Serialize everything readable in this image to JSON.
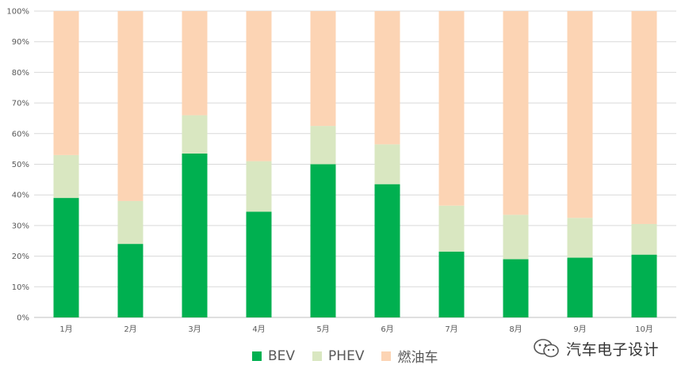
{
  "chart_data": {
    "type": "bar",
    "stacked": true,
    "percent": true,
    "categories": [
      "1月",
      "2月",
      "3月",
      "4月",
      "5月",
      "6月",
      "7月",
      "8月",
      "9月",
      "10月"
    ],
    "series": [
      {
        "name": "BEV",
        "color": "#00b050",
        "values": [
          39,
          24,
          53.5,
          34.5,
          50,
          43.5,
          21.5,
          19,
          19.5,
          20.5
        ]
      },
      {
        "name": "PHEV",
        "color": "#d9e7c1",
        "values": [
          14,
          14,
          12.5,
          16.5,
          12.5,
          13,
          15,
          14.5,
          13,
          10
        ]
      },
      {
        "name": "燃油车",
        "color": "#fcd4b4",
        "values": [
          47,
          62,
          34,
          49,
          37.5,
          43.5,
          63.5,
          66.5,
          67.5,
          69.5
        ]
      }
    ],
    "y_ticks": [
      "0%",
      "10%",
      "20%",
      "30%",
      "40%",
      "50%",
      "60%",
      "70%",
      "80%",
      "90%",
      "100%"
    ],
    "ylim": [
      0,
      100
    ],
    "grid": true,
    "legend_position": "bottom"
  },
  "watermark": {
    "text": "汽车电子设计",
    "icon": "wechat-icon"
  }
}
